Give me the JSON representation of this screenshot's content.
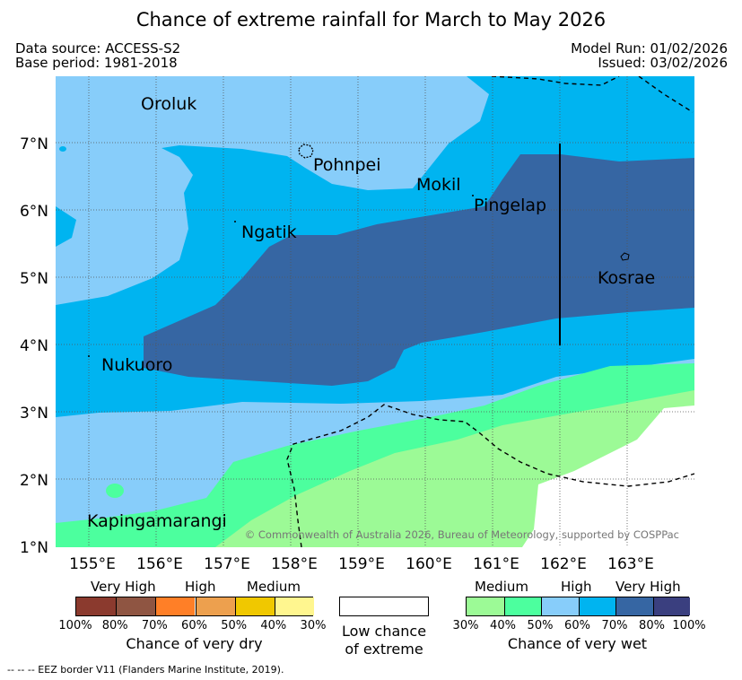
{
  "title": "Chance of extreme rainfall for March to May 2026",
  "meta": {
    "data_source": "Data source: ACCESS-S2",
    "base_period": "Base period: 1981-2018",
    "model_run": "Model Run: 01/02/2026",
    "issued": "Issued: 03/02/2026"
  },
  "axes": {
    "lat_ticks": [
      "7°N",
      "6°N",
      "5°N",
      "4°N",
      "3°N",
      "2°N",
      "1°N"
    ],
    "lon_ticks": [
      "155°E",
      "156°E",
      "157°E",
      "158°E",
      "159°E",
      "160°E",
      "161°E",
      "162°E",
      "163°E"
    ]
  },
  "places": {
    "oroluk": "Oroluk",
    "pohnpei": "Pohnpei",
    "mokil": "Mokil",
    "pingelap": "Pingelap",
    "ngatik": "Ngatik",
    "kosrae": "Kosrae",
    "nukuoro": "Nukuoro",
    "kapingamarangi": "Kapingamarangi"
  },
  "copyright": "© Commonwealth of Australia 2026, Bureau of Meteorology, supported by COSPPac",
  "legend": {
    "dry": {
      "headings": [
        "Very High",
        "High",
        "Medium"
      ],
      "percents": [
        "100%",
        "80%",
        "70%",
        "60%",
        "50%",
        "40%",
        "30%"
      ],
      "caption": "Chance of very dry",
      "colors": [
        "#8b3a2e",
        "#8f5542",
        "#ff7f27",
        "#eda04e",
        "#f0c800",
        "#fff68f"
      ]
    },
    "low": {
      "caption_line1": "Low chance",
      "caption_line2": "of extreme"
    },
    "wet": {
      "headings": [
        "Medium",
        "High",
        "Very High"
      ],
      "percents": [
        "30%",
        "40%",
        "50%",
        "60%",
        "70%",
        "80%",
        "100%"
      ],
      "caption": "Chance of very wet",
      "colors": [
        "#9cfa96",
        "#4cff9e",
        "#87cdfa",
        "#00b4f0",
        "#3666a3",
        "#3a3f7f"
      ]
    }
  },
  "footnote": "--  --  -- EEZ border V11 (Flanders Marine Institute, 2019)."
}
